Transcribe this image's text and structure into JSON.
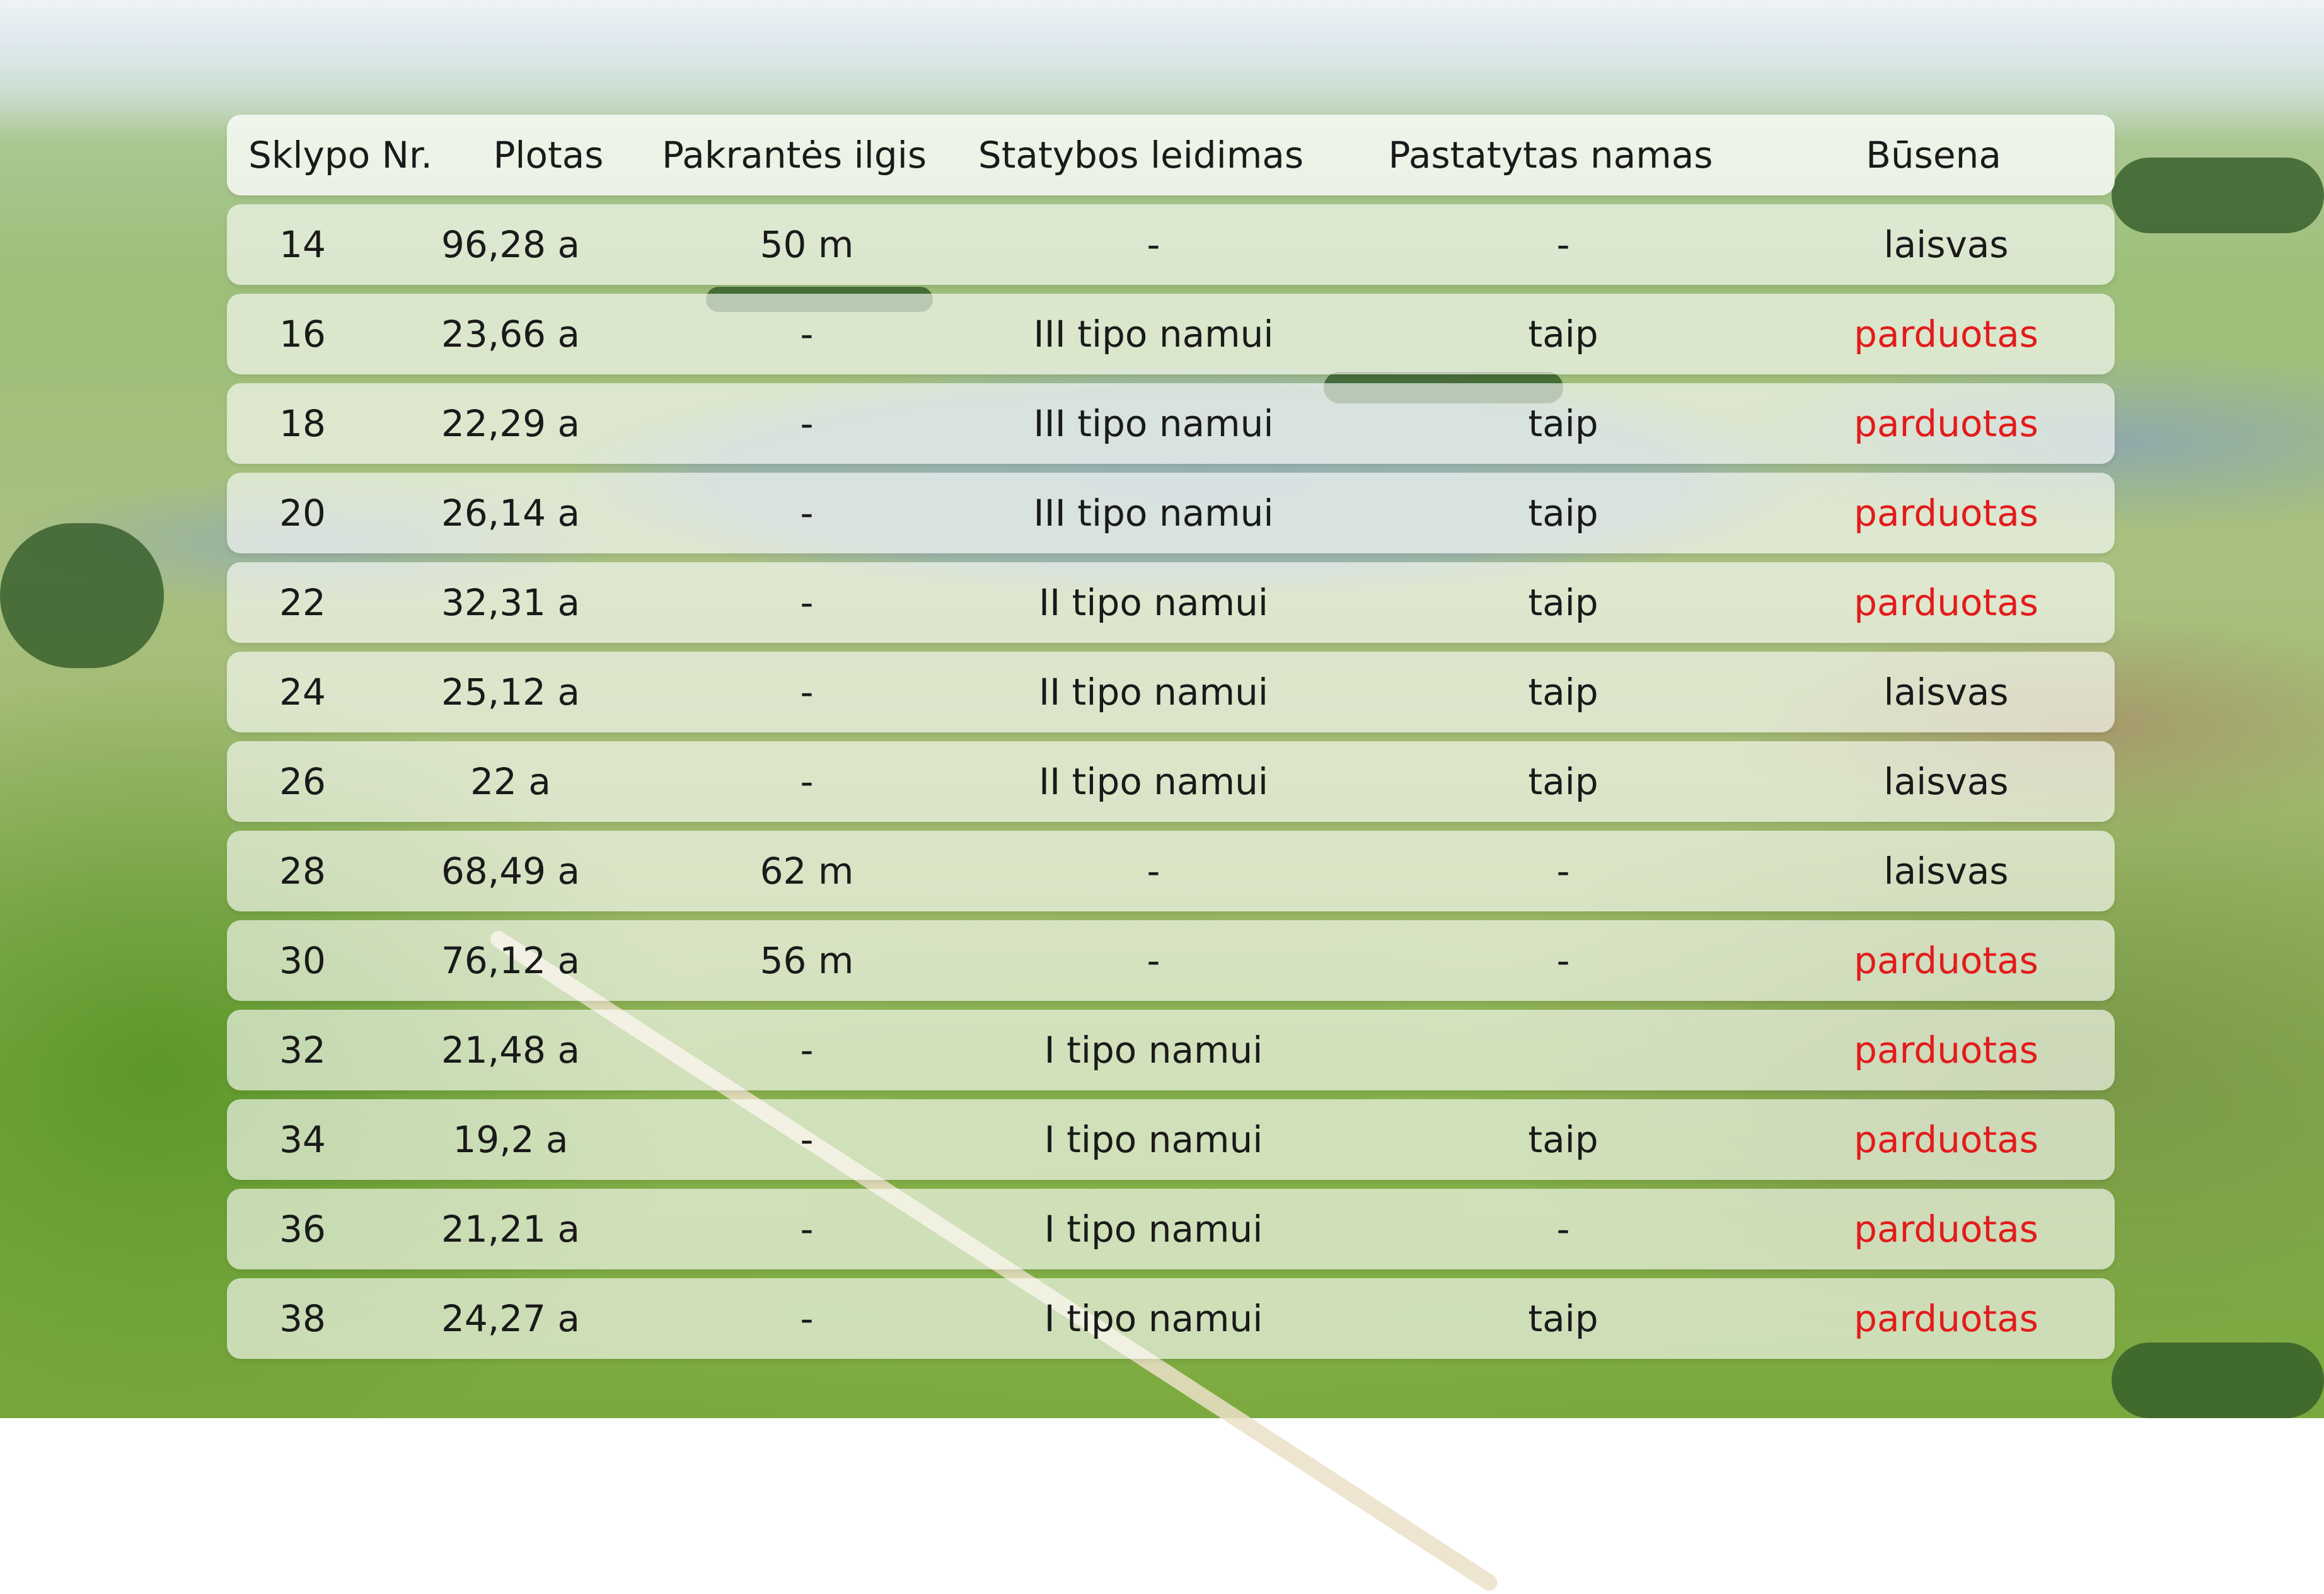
{
  "colors": {
    "sold": "#e31b1b",
    "free": "#1a1a1a"
  },
  "table": {
    "headers": [
      "Sklypo Nr.",
      "Plotas",
      "Pakrantės ilgis",
      "Statybos leidimas",
      "Pastatytas namas",
      "Būsena"
    ],
    "rows": [
      {
        "nr": "14",
        "plotas": "96,28 a",
        "pakrante": "50 m",
        "leidimas": "-",
        "namas": "-",
        "busena": "laisvas",
        "sold": false
      },
      {
        "nr": "16",
        "plotas": "23,66 a",
        "pakrante": "-",
        "leidimas": "III tipo namui",
        "namas": "taip",
        "busena": "parduotas",
        "sold": true
      },
      {
        "nr": "18",
        "plotas": "22,29 a",
        "pakrante": "-",
        "leidimas": "III tipo namui",
        "namas": "taip",
        "busena": "parduotas",
        "sold": true
      },
      {
        "nr": "20",
        "plotas": "26,14 a",
        "pakrante": "-",
        "leidimas": "III tipo namui",
        "namas": "taip",
        "busena": "parduotas",
        "sold": true
      },
      {
        "nr": "22",
        "plotas": "32,31 a",
        "pakrante": "-",
        "leidimas": "II tipo namui",
        "namas": "taip",
        "busena": "parduotas",
        "sold": true
      },
      {
        "nr": "24",
        "plotas": "25,12 a",
        "pakrante": "-",
        "leidimas": "II tipo namui",
        "namas": "taip",
        "busena": "laisvas",
        "sold": false
      },
      {
        "nr": "26",
        "plotas": "22 a",
        "pakrante": "-",
        "leidimas": "II tipo namui",
        "namas": "taip",
        "busena": "laisvas",
        "sold": false
      },
      {
        "nr": "28",
        "plotas": "68,49 a",
        "pakrante": "62 m",
        "leidimas": "-",
        "namas": "-",
        "busena": "laisvas",
        "sold": false
      },
      {
        "nr": "30",
        "plotas": "76,12 a",
        "pakrante": "56 m",
        "leidimas": "-",
        "namas": "-",
        "busena": "parduotas",
        "sold": true
      },
      {
        "nr": "32",
        "plotas": "21,48 a",
        "pakrante": "-",
        "leidimas": "I tipo namui",
        "namas": "",
        "busena": "parduotas",
        "sold": true
      },
      {
        "nr": "34",
        "plotas": "19,2 a",
        "pakrante": "-",
        "leidimas": "I tipo namui",
        "namas": "taip",
        "busena": "parduotas",
        "sold": true
      },
      {
        "nr": "36",
        "plotas": "21,21 a",
        "pakrante": "-",
        "leidimas": "I tipo namui",
        "namas": "-",
        "busena": "parduotas",
        "sold": true
      },
      {
        "nr": "38",
        "plotas": "24,27 a",
        "pakrante": "-",
        "leidimas": "I tipo namui",
        "namas": "taip",
        "busena": "parduotas",
        "sold": true
      }
    ]
  }
}
